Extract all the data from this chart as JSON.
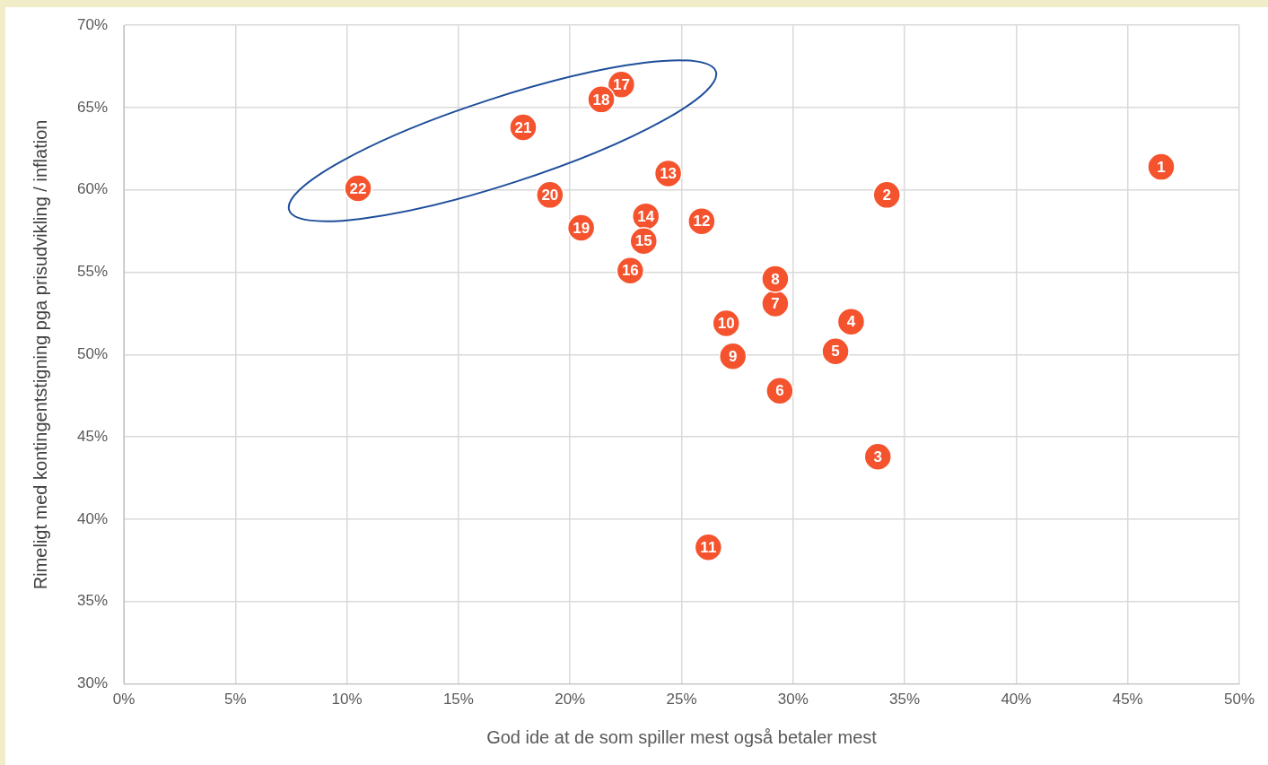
{
  "chart_data": {
    "type": "scatter",
    "xlabel": "God ide at de som spiller mest også betaler mest",
    "ylabel": "Rimeligt med kontingentstigning pga prisudvikling / inflation",
    "x": [
      46.5,
      34.2,
      33.8,
      32.6,
      31.9,
      29.4,
      29.2,
      29.2,
      27.3,
      27.0,
      26.2,
      25.9,
      24.4,
      23.4,
      23.3,
      22.7,
      22.3,
      21.4,
      20.5,
      19.1,
      17.9,
      10.5
    ],
    "values": [
      61.4,
      59.7,
      43.8,
      52.0,
      50.2,
      47.8,
      53.1,
      54.6,
      49.9,
      51.9,
      38.3,
      58.1,
      61.0,
      58.4,
      56.9,
      55.1,
      66.4,
      65.5,
      57.7,
      59.7,
      63.8,
      60.1
    ],
    "color": "#f4532e",
    "marker": "circle",
    "grid": true,
    "legend": false,
    "xlim": [
      0,
      50
    ],
    "xticks": [
      {
        "value": 0,
        "label": "0%"
      },
      {
        "value": 5,
        "label": "5%"
      },
      {
        "value": 10,
        "label": "10%"
      },
      {
        "value": 15,
        "label": "15%"
      },
      {
        "value": 20,
        "label": "20%"
      },
      {
        "value": 25,
        "label": "25%"
      },
      {
        "value": 30,
        "label": "30%"
      },
      {
        "value": 35,
        "label": "35%"
      },
      {
        "value": 40,
        "label": "40%"
      },
      {
        "value": 45,
        "label": "45%"
      },
      {
        "value": 50,
        "label": "50%"
      }
    ],
    "ylim": [
      30,
      70
    ],
    "yticks": [
      {
        "value": 30,
        "label": "30%"
      },
      {
        "value": 35,
        "label": "35%"
      },
      {
        "value": 40,
        "label": "40%"
      },
      {
        "value": 45,
        "label": "45%"
      },
      {
        "value": 50,
        "label": "50%"
      },
      {
        "value": 55,
        "label": "55%"
      },
      {
        "value": 60,
        "label": "60%"
      },
      {
        "value": 65,
        "label": "65%"
      },
      {
        "value": 70,
        "label": "70%"
      }
    ],
    "annotations": [
      {
        "text": "1",
        "x": 46.5,
        "y": 61.4
      },
      {
        "text": "2",
        "x": 34.2,
        "y": 59.7
      },
      {
        "text": "3",
        "x": 33.8,
        "y": 43.8
      },
      {
        "text": "4",
        "x": 32.6,
        "y": 52.0
      },
      {
        "text": "5",
        "x": 31.9,
        "y": 50.2
      },
      {
        "text": "6",
        "x": 29.4,
        "y": 47.8
      },
      {
        "text": "7",
        "x": 29.2,
        "y": 53.1
      },
      {
        "text": "8",
        "x": 29.2,
        "y": 54.6
      },
      {
        "text": "9",
        "x": 27.3,
        "y": 49.9
      },
      {
        "text": "10",
        "x": 27.0,
        "y": 51.9
      },
      {
        "text": "11",
        "x": 26.2,
        "y": 38.3
      },
      {
        "text": "12",
        "x": 25.9,
        "y": 58.1
      },
      {
        "text": "13",
        "x": 24.4,
        "y": 61.0
      },
      {
        "text": "14",
        "x": 23.4,
        "y": 58.4
      },
      {
        "text": "15",
        "x": 23.3,
        "y": 56.9
      },
      {
        "text": "16",
        "x": 22.7,
        "y": 55.1
      },
      {
        "text": "17",
        "x": 22.3,
        "y": 66.4
      },
      {
        "text": "18",
        "x": 21.4,
        "y": 65.5
      },
      {
        "text": "19",
        "x": 20.5,
        "y": 57.7
      },
      {
        "text": "20",
        "x": 19.1,
        "y": 59.7
      },
      {
        "text": "21",
        "x": 17.9,
        "y": 63.8
      },
      {
        "text": "22",
        "x": 10.5,
        "y": 60.1
      }
    ]
  }
}
